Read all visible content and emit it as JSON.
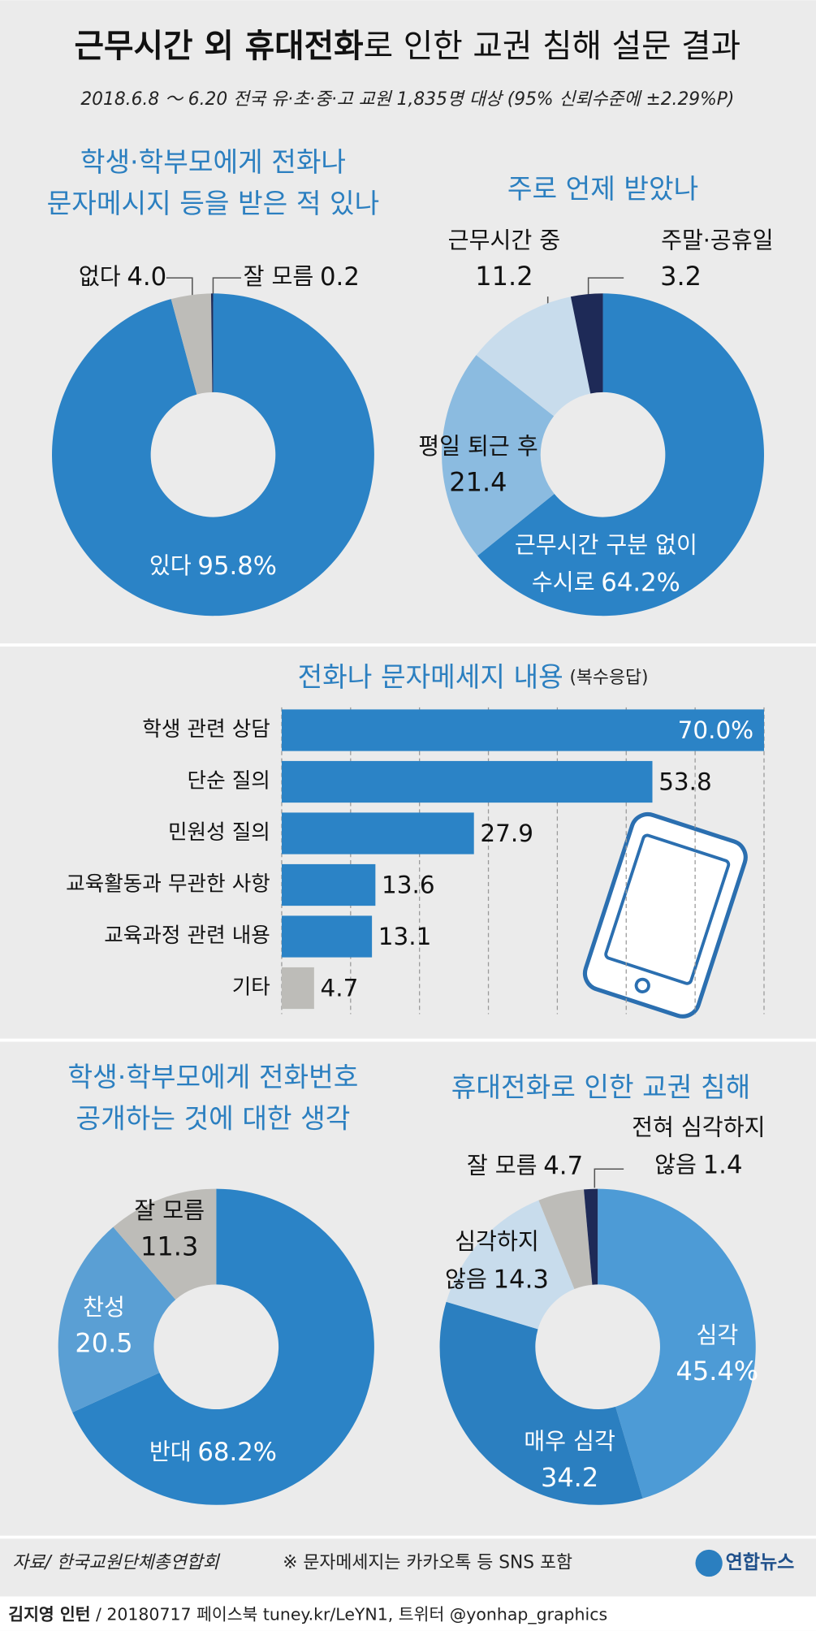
{
  "title": [
    "근무시간 외 휴대전화",
    "로 인한 교권 침해 설문 결과"
  ],
  "subtitle": "2018.6.8 ～ 6.20 전국 유·초·중·고 교원 1,835명 대상 (95% 신뢰수준에 ±2.29%P)",
  "chart_data": [
    {
      "type": "pie",
      "title": [
        "학생·학부모에게 전화나",
        "문자메시지 등을 받은 적 있나"
      ],
      "categories": [
        [
          "있다"
        ],
        [
          "없다"
        ],
        [
          "잘 모름"
        ]
      ],
      "values": [
        95.8,
        4.0,
        0.2
      ],
      "value_labels": [
        "95.8%",
        "4.0",
        "0.2"
      ],
      "colors": [
        "#2b83c6",
        "#bdbcb8",
        "#1e2a57"
      ]
    },
    {
      "type": "pie",
      "title": [
        "주로 언제 받았나"
      ],
      "categories": [
        [
          "근무시간 구분 없이",
          "수시로"
        ],
        [
          "평일 퇴근 후"
        ],
        [
          "근무시간 중"
        ],
        [
          "주말·공휴일"
        ]
      ],
      "values": [
        64.2,
        21.4,
        11.2,
        3.2
      ],
      "value_labels": [
        "64.2%",
        "21.4",
        "11.2",
        "3.2"
      ],
      "colors": [
        "#2b83c6",
        "#8bbbe0",
        "#c8dcec",
        "#1e2a57"
      ]
    },
    {
      "type": "hbar",
      "title": "전화나 문자메세지 내용",
      "note": "(복수응답)",
      "categories": [
        "학생 관련 상담",
        "단순 질의",
        "민원성 질의",
        "교육활동과 무관한 사항",
        "교육과정 관련 내용",
        "기타"
      ],
      "values": [
        70.0,
        53.8,
        27.9,
        13.6,
        13.1,
        4.7
      ],
      "value_labels": [
        "70.0%",
        "53.8",
        "27.9",
        "13.6",
        "13.1",
        "4.7"
      ],
      "colors": [
        "#2b83c6",
        "#2b83c6",
        "#2b83c6",
        "#2b83c6",
        "#2b83c6",
        "#bdbcb8"
      ],
      "xlim": [
        0,
        70
      ],
      "xticks": [
        0,
        10,
        20,
        30,
        40,
        50,
        60,
        70
      ],
      "grid": true
    },
    {
      "type": "pie",
      "title": [
        "학생·학부모에게 전화번호",
        "공개하는 것에 대한 생각"
      ],
      "categories": [
        [
          "반대"
        ],
        [
          "찬성"
        ],
        [
          "잘 모름"
        ]
      ],
      "values": [
        68.2,
        20.5,
        11.3
      ],
      "value_labels": [
        "68.2%",
        "20.5",
        "11.3"
      ],
      "colors": [
        "#2b83c6",
        "#5a9fd4",
        "#bdbcb8"
      ]
    },
    {
      "type": "pie",
      "title": [
        "휴대전화로 인한 교권 침해"
      ],
      "categories": [
        [
          "심각"
        ],
        [
          "매우 심각"
        ],
        [
          "심각하지",
          "않음"
        ],
        [
          "잘 모름"
        ],
        [
          "전혀 심각하지",
          "않음"
        ]
      ],
      "values": [
        45.4,
        34.2,
        14.3,
        4.7,
        1.4
      ],
      "value_labels": [
        "45.4%",
        "34.2",
        "14.3",
        "4.7",
        "1.4"
      ],
      "colors": [
        "#4d9bd6",
        "#2b7fc0",
        "#c8dcec",
        "#bdbcb8",
        "#1e2a57"
      ]
    }
  ],
  "footer": {
    "source": "자료/ 한국교원단체총연합회",
    "note": "※ 문자메세지는 카카오톡 등 SNS 포함",
    "logo": "연합뉴스",
    "credit_name": "김지영 인턴",
    "credit": "/ 20180717 페이스북 tuney.kr/LeYN1, 트위터 @yonhap_graphics"
  }
}
